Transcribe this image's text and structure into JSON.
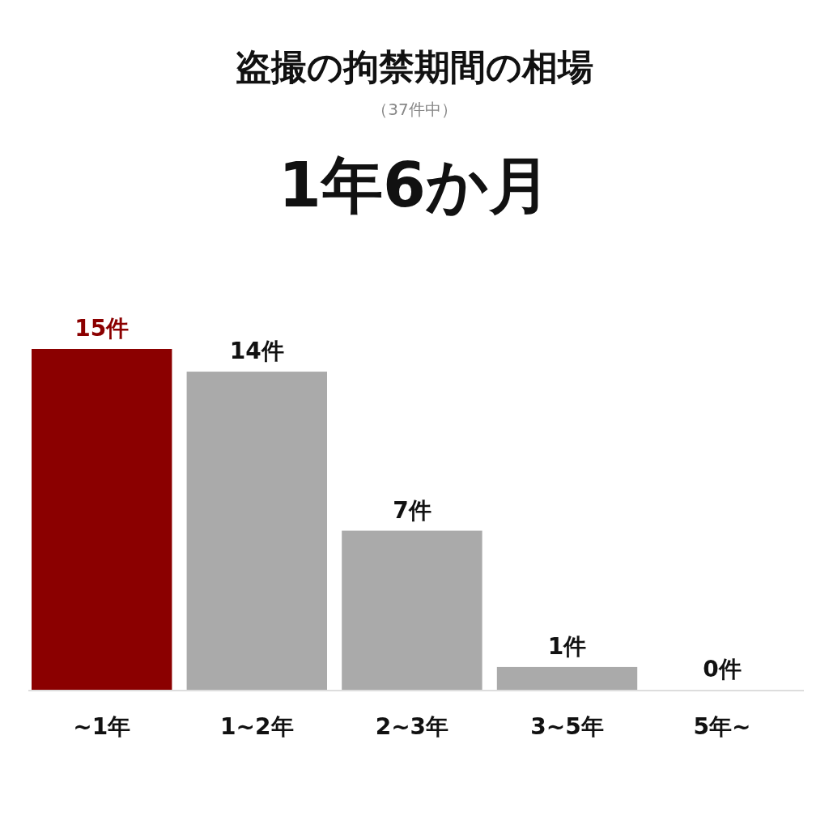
{
  "chart_data": {
    "type": "bar",
    "title": "盗撮の拘禁期間の相場",
    "subtitle": "（37件中）",
    "annotations": [
      "1年6か月"
    ],
    "categories": [
      "~1年",
      "1~2年",
      "2~3年",
      "3~5年",
      "5年~"
    ],
    "values": [
      15,
      14,
      7,
      1,
      0
    ],
    "colors": [
      "#8b0000",
      "#aaaaaa",
      "#aaaaaa",
      "#aaaaaa",
      "#aaaaaa"
    ],
    "value_labels": [
      "15件",
      "14件",
      "7件",
      "1件",
      "0件"
    ]
  }
}
